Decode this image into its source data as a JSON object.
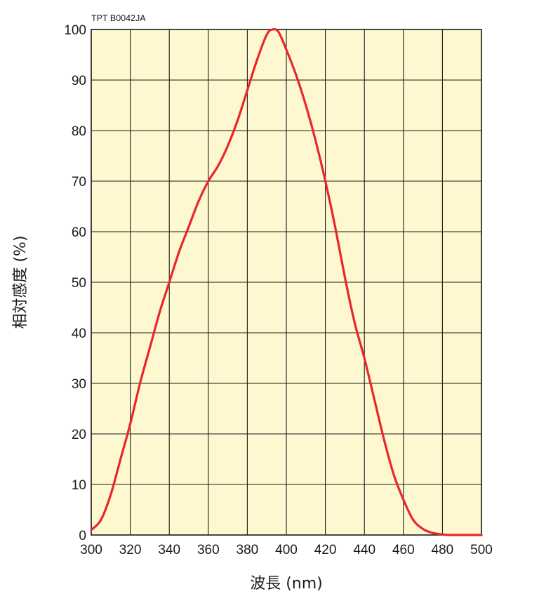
{
  "chart_data": {
    "type": "line",
    "annotation": "TPT B0042JA",
    "xlabel": "波長 (nm)",
    "ylabel": "相対感度 (%)",
    "xlim": [
      300,
      500
    ],
    "ylim": [
      0,
      100
    ],
    "xticks": [
      300,
      320,
      340,
      360,
      380,
      400,
      420,
      440,
      460,
      480,
      500
    ],
    "yticks": [
      0,
      10,
      20,
      30,
      40,
      50,
      60,
      70,
      80,
      90,
      100
    ],
    "grid": true,
    "colors": {
      "background": "#fdf8cf",
      "grid": "#1a1a1a",
      "line": "#e8262b"
    },
    "series": [
      {
        "x": [
          300,
          305,
          310,
          315,
          320,
          325,
          330,
          335,
          340,
          345,
          350,
          355,
          360,
          365,
          370,
          375,
          380,
          385,
          390,
          393,
          396,
          400,
          405,
          410,
          415,
          420,
          425,
          430,
          435,
          440,
          445,
          450,
          455,
          460,
          465,
          470,
          475,
          480,
          485,
          490,
          495,
          500
        ],
        "y": [
          1,
          3,
          8,
          15,
          22,
          30,
          37,
          44,
          50,
          56,
          61,
          66,
          70,
          73,
          77,
          82,
          88,
          94,
          99,
          100,
          99.5,
          96,
          91,
          85,
          78,
          70,
          61,
          51,
          42,
          35,
          27,
          19,
          12,
          7,
          3,
          1.2,
          0.4,
          0.1,
          0,
          0,
          0,
          0
        ]
      }
    ]
  }
}
